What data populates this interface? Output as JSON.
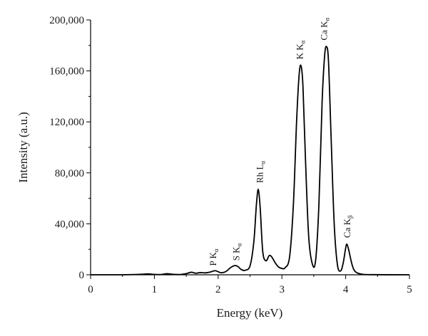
{
  "chart_data": {
    "type": "line",
    "xlabel": "Energy (keV)",
    "ylabel": "Intensity (a.u.)",
    "xlim": [
      0,
      5
    ],
    "ylim": [
      0,
      200000
    ],
    "x_ticks": [
      0,
      1,
      2,
      3,
      4,
      5
    ],
    "x_tick_labels": [
      "0",
      "1",
      "2",
      "3",
      "4",
      "5"
    ],
    "y_ticks": [
      0,
      40000,
      80000,
      120000,
      160000,
      200000
    ],
    "y_tick_labels": [
      "0",
      "40,000",
      "80,000",
      "120,000",
      "160,000",
      "200,000"
    ],
    "grid": false,
    "legend": "none",
    "line_color": "#000000",
    "series": [
      {
        "x": [
          0,
          0.5,
          0.8,
          0.9,
          1.0,
          1.1,
          1.2,
          1.3,
          1.4,
          1.5,
          1.58,
          1.65,
          1.72,
          1.8,
          1.88,
          1.95,
          2.0,
          2.05,
          2.12,
          2.2,
          2.26,
          2.31,
          2.36,
          2.42,
          2.5,
          2.56,
          2.6,
          2.63,
          2.66,
          2.7,
          2.75,
          2.8,
          2.84,
          2.9,
          2.95,
          3.0,
          3.05,
          3.12,
          3.18,
          3.23,
          3.27,
          3.3,
          3.33,
          3.37,
          3.42,
          3.48,
          3.53,
          3.58,
          3.63,
          3.67,
          3.7,
          3.73,
          3.77,
          3.82,
          3.87,
          3.92,
          3.96,
          4.0,
          4.02,
          4.05,
          4.1,
          4.15,
          4.25,
          4.4,
          5.0
        ],
        "y": [
          0,
          0,
          400,
          700,
          300,
          200,
          800,
          300,
          200,
          900,
          2000,
          1200,
          1700,
          1500,
          2200,
          3200,
          2400,
          1600,
          2500,
          5800,
          7200,
          6500,
          4200,
          3500,
          7000,
          26000,
          55000,
          67000,
          52000,
          18000,
          11000,
          15000,
          14000,
          9000,
          6000,
          5000,
          5500,
          14000,
          55000,
          120000,
          157000,
          164000,
          148000,
          90000,
          30000,
          8000,
          12000,
          55000,
          135000,
          172000,
          179000,
          168000,
          110000,
          40000,
          8000,
          3000,
          9000,
          21000,
          24000,
          19000,
          8000,
          2500,
          500,
          100,
          0
        ]
      }
    ],
    "annotations": [
      {
        "main": "P K",
        "sub": "α",
        "x": 1.97,
        "y": 7000
      },
      {
        "main": "S K",
        "sub": "α",
        "x": 2.33,
        "y": 11000
      },
      {
        "main": "Rh L",
        "sub": "α",
        "x": 2.7,
        "y": 72000
      },
      {
        "main": "K K",
        "sub": "α",
        "x": 3.33,
        "y": 169000
      },
      {
        "main": "Ca K",
        "sub": "α",
        "x": 3.71,
        "y": 184000
      },
      {
        "main": "Ca K",
        "sub": "β",
        "x": 4.07,
        "y": 29000
      }
    ]
  }
}
